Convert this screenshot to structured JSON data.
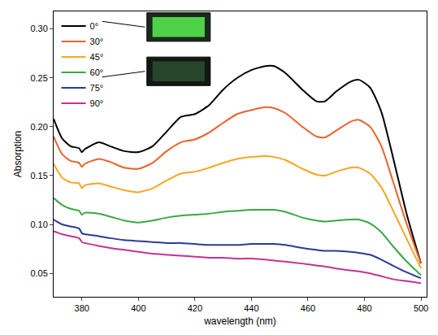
{
  "chart_data": {
    "type": "line",
    "x_label": "wavelength (nm)",
    "y_label": "Absorption",
    "x": [
      370,
      373,
      376,
      379,
      380,
      381,
      386,
      390,
      395,
      400,
      405,
      410,
      415,
      420,
      425,
      430,
      435,
      440,
      445,
      448,
      452,
      458,
      463,
      466,
      470,
      475,
      478,
      482,
      486,
      490,
      495,
      500
    ],
    "series": [
      {
        "name": "0°",
        "color": "#000000",
        "values": [
          0.208,
          0.188,
          0.18,
          0.178,
          0.174,
          0.177,
          0.184,
          0.18,
          0.175,
          0.174,
          0.18,
          0.195,
          0.21,
          0.213,
          0.222,
          0.238,
          0.25,
          0.258,
          0.262,
          0.262,
          0.255,
          0.238,
          0.226,
          0.226,
          0.236,
          0.246,
          0.248,
          0.24,
          0.215,
          0.17,
          0.11,
          0.06
        ]
      },
      {
        "name": "30°",
        "color": "#e8632a",
        "values": [
          0.19,
          0.172,
          0.165,
          0.163,
          0.159,
          0.162,
          0.167,
          0.164,
          0.158,
          0.157,
          0.163,
          0.175,
          0.184,
          0.187,
          0.194,
          0.204,
          0.213,
          0.217,
          0.22,
          0.219,
          0.214,
          0.2,
          0.19,
          0.189,
          0.196,
          0.205,
          0.207,
          0.2,
          0.18,
          0.145,
          0.1,
          0.06
        ]
      },
      {
        "name": "45°",
        "color": "#f5a623",
        "values": [
          0.162,
          0.148,
          0.143,
          0.142,
          0.137,
          0.14,
          0.142,
          0.139,
          0.135,
          0.133,
          0.137,
          0.145,
          0.152,
          0.154,
          0.158,
          0.163,
          0.167,
          0.169,
          0.17,
          0.169,
          0.166,
          0.157,
          0.151,
          0.15,
          0.154,
          0.158,
          0.158,
          0.152,
          0.138,
          0.115,
          0.085,
          0.055
        ]
      },
      {
        "name": "60°",
        "color": "#3aa843",
        "values": [
          0.127,
          0.12,
          0.116,
          0.114,
          0.11,
          0.112,
          0.111,
          0.108,
          0.104,
          0.102,
          0.104,
          0.107,
          0.109,
          0.11,
          0.111,
          0.113,
          0.114,
          0.115,
          0.115,
          0.115,
          0.113,
          0.107,
          0.104,
          0.103,
          0.104,
          0.105,
          0.105,
          0.101,
          0.092,
          0.078,
          0.062,
          0.048
        ]
      },
      {
        "name": "75°",
        "color": "#2b3a9a",
        "values": [
          0.105,
          0.1,
          0.098,
          0.096,
          0.091,
          0.09,
          0.088,
          0.086,
          0.084,
          0.083,
          0.082,
          0.081,
          0.081,
          0.08,
          0.079,
          0.079,
          0.079,
          0.08,
          0.08,
          0.08,
          0.079,
          0.076,
          0.074,
          0.073,
          0.073,
          0.072,
          0.071,
          0.069,
          0.064,
          0.058,
          0.051,
          0.045
        ]
      },
      {
        "name": "90°",
        "color": "#c2348f",
        "values": [
          0.093,
          0.09,
          0.088,
          0.086,
          0.082,
          0.081,
          0.078,
          0.076,
          0.074,
          0.072,
          0.07,
          0.069,
          0.068,
          0.067,
          0.066,
          0.066,
          0.065,
          0.065,
          0.064,
          0.063,
          0.062,
          0.06,
          0.058,
          0.057,
          0.055,
          0.053,
          0.052,
          0.05,
          0.047,
          0.044,
          0.042,
          0.04
        ]
      }
    ],
    "xlim": [
      370,
      502
    ],
    "xticks": [
      380,
      400,
      420,
      440,
      460,
      480,
      500
    ],
    "ylim": [
      0.026,
      0.318
    ],
    "yticks": [
      {
        "value": 0.05,
        "label": "0.05"
      },
      {
        "value": 0.1,
        "label": "0.10"
      },
      {
        "value": 0.15,
        "label": "0.15"
      },
      {
        "value": 0.2,
        "label": "0.20"
      },
      {
        "value": 0.25,
        "label": "0.25"
      },
      {
        "value": 0.3,
        "label": "0.30"
      }
    ],
    "grid": false,
    "legend": "top-left"
  }
}
